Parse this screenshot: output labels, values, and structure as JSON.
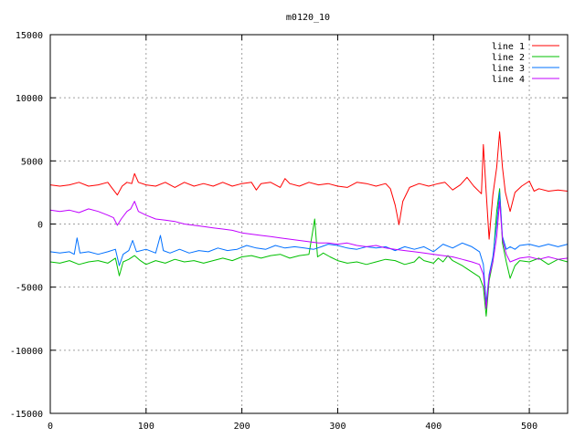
{
  "chart_data": {
    "type": "line",
    "title": "m0120_10",
    "xlabel": "",
    "ylabel": "",
    "xlim": [
      0,
      540
    ],
    "ylim": [
      -15000,
      15000
    ],
    "x_ticks": [
      0,
      100,
      200,
      300,
      400,
      500
    ],
    "y_ticks": [
      -15000,
      -10000,
      -5000,
      0,
      5000,
      10000,
      15000
    ],
    "grid": true,
    "legend_position": "top-right",
    "series": [
      {
        "name": "line 1",
        "color": "#ff0000",
        "points": [
          [
            0,
            3100
          ],
          [
            10,
            3000
          ],
          [
            20,
            3100
          ],
          [
            30,
            3300
          ],
          [
            40,
            3000
          ],
          [
            50,
            3100
          ],
          [
            60,
            3300
          ],
          [
            65,
            2800
          ],
          [
            70,
            2300
          ],
          [
            75,
            3000
          ],
          [
            80,
            3300
          ],
          [
            85,
            3200
          ],
          [
            88,
            4000
          ],
          [
            92,
            3300
          ],
          [
            100,
            3100
          ],
          [
            110,
            3000
          ],
          [
            120,
            3300
          ],
          [
            130,
            2900
          ],
          [
            140,
            3300
          ],
          [
            150,
            3000
          ],
          [
            160,
            3200
          ],
          [
            170,
            3000
          ],
          [
            180,
            3300
          ],
          [
            190,
            3000
          ],
          [
            200,
            3200
          ],
          [
            210,
            3300
          ],
          [
            215,
            2700
          ],
          [
            220,
            3200
          ],
          [
            230,
            3300
          ],
          [
            240,
            2900
          ],
          [
            245,
            3600
          ],
          [
            250,
            3200
          ],
          [
            260,
            3000
          ],
          [
            270,
            3300
          ],
          [
            280,
            3100
          ],
          [
            290,
            3200
          ],
          [
            300,
            3000
          ],
          [
            310,
            2900
          ],
          [
            320,
            3300
          ],
          [
            330,
            3200
          ],
          [
            340,
            3000
          ],
          [
            350,
            3200
          ],
          [
            355,
            2800
          ],
          [
            360,
            1500
          ],
          [
            364,
            -50
          ],
          [
            368,
            1800
          ],
          [
            375,
            2900
          ],
          [
            385,
            3200
          ],
          [
            395,
            3000
          ],
          [
            405,
            3200
          ],
          [
            412,
            3300
          ],
          [
            420,
            2700
          ],
          [
            428,
            3100
          ],
          [
            435,
            3700
          ],
          [
            442,
            3000
          ],
          [
            450,
            2400
          ],
          [
            452,
            6300
          ],
          [
            455,
            2500
          ],
          [
            458,
            -1200
          ],
          [
            462,
            2300
          ],
          [
            466,
            4500
          ],
          [
            469,
            7300
          ],
          [
            472,
            4500
          ],
          [
            475,
            2500
          ],
          [
            480,
            1000
          ],
          [
            485,
            2500
          ],
          [
            492,
            3000
          ],
          [
            500,
            3400
          ],
          [
            505,
            2600
          ],
          [
            510,
            2800
          ],
          [
            520,
            2600
          ],
          [
            530,
            2700
          ],
          [
            540,
            2600
          ]
        ]
      },
      {
        "name": "line 2",
        "color": "#00c000",
        "points": [
          [
            0,
            -3000
          ],
          [
            10,
            -3100
          ],
          [
            20,
            -2900
          ],
          [
            30,
            -3200
          ],
          [
            40,
            -3000
          ],
          [
            50,
            -2900
          ],
          [
            60,
            -3100
          ],
          [
            68,
            -2700
          ],
          [
            72,
            -4100
          ],
          [
            76,
            -3000
          ],
          [
            82,
            -2800
          ],
          [
            88,
            -2500
          ],
          [
            94,
            -2900
          ],
          [
            100,
            -3200
          ],
          [
            110,
            -2900
          ],
          [
            120,
            -3100
          ],
          [
            130,
            -2800
          ],
          [
            140,
            -3000
          ],
          [
            150,
            -2900
          ],
          [
            160,
            -3100
          ],
          [
            170,
            -2900
          ],
          [
            180,
            -2700
          ],
          [
            190,
            -2900
          ],
          [
            200,
            -2600
          ],
          [
            210,
            -2500
          ],
          [
            220,
            -2700
          ],
          [
            230,
            -2500
          ],
          [
            240,
            -2400
          ],
          [
            250,
            -2700
          ],
          [
            260,
            -2500
          ],
          [
            270,
            -2400
          ],
          [
            276,
            400
          ],
          [
            279,
            -2600
          ],
          [
            285,
            -2300
          ],
          [
            292,
            -2600
          ],
          [
            300,
            -2900
          ],
          [
            310,
            -3100
          ],
          [
            320,
            -3000
          ],
          [
            330,
            -3200
          ],
          [
            340,
            -3000
          ],
          [
            350,
            -2800
          ],
          [
            360,
            -2900
          ],
          [
            370,
            -3200
          ],
          [
            380,
            -3000
          ],
          [
            385,
            -2600
          ],
          [
            390,
            -2900
          ],
          [
            400,
            -3100
          ],
          [
            405,
            -2700
          ],
          [
            410,
            -3000
          ],
          [
            415,
            -2500
          ],
          [
            420,
            -2900
          ],
          [
            430,
            -3300
          ],
          [
            440,
            -3800
          ],
          [
            448,
            -4200
          ],
          [
            452,
            -5000
          ],
          [
            455,
            -7300
          ],
          [
            458,
            -4500
          ],
          [
            462,
            -3000
          ],
          [
            466,
            1000
          ],
          [
            469,
            2800
          ],
          [
            472,
            -1500
          ],
          [
            476,
            -3000
          ],
          [
            480,
            -4300
          ],
          [
            485,
            -3300
          ],
          [
            490,
            -2900
          ],
          [
            500,
            -3000
          ],
          [
            510,
            -2700
          ],
          [
            520,
            -3200
          ],
          [
            530,
            -2800
          ],
          [
            540,
            -3000
          ]
        ]
      },
      {
        "name": "line 3",
        "color": "#0070ff",
        "points": [
          [
            0,
            -2200
          ],
          [
            10,
            -2300
          ],
          [
            20,
            -2200
          ],
          [
            25,
            -2400
          ],
          [
            28,
            -1100
          ],
          [
            31,
            -2300
          ],
          [
            40,
            -2200
          ],
          [
            50,
            -2400
          ],
          [
            60,
            -2200
          ],
          [
            68,
            -2000
          ],
          [
            72,
            -3300
          ],
          [
            76,
            -2400
          ],
          [
            82,
            -2100
          ],
          [
            86,
            -1300
          ],
          [
            90,
            -2200
          ],
          [
            100,
            -2000
          ],
          [
            110,
            -2300
          ],
          [
            115,
            -900
          ],
          [
            118,
            -2100
          ],
          [
            125,
            -2300
          ],
          [
            135,
            -2000
          ],
          [
            145,
            -2300
          ],
          [
            155,
            -2100
          ],
          [
            165,
            -2200
          ],
          [
            175,
            -1900
          ],
          [
            185,
            -2100
          ],
          [
            195,
            -2000
          ],
          [
            205,
            -1700
          ],
          [
            215,
            -1900
          ],
          [
            225,
            -2000
          ],
          [
            235,
            -1700
          ],
          [
            245,
            -1900
          ],
          [
            255,
            -1800
          ],
          [
            265,
            -1900
          ],
          [
            275,
            -2000
          ],
          [
            283,
            -1800
          ],
          [
            290,
            -1600
          ],
          [
            300,
            -1700
          ],
          [
            310,
            -1900
          ],
          [
            320,
            -2000
          ],
          [
            330,
            -1800
          ],
          [
            340,
            -1900
          ],
          [
            350,
            -1800
          ],
          [
            360,
            -2100
          ],
          [
            370,
            -1800
          ],
          [
            380,
            -2000
          ],
          [
            390,
            -1800
          ],
          [
            400,
            -2200
          ],
          [
            410,
            -1600
          ],
          [
            420,
            -1900
          ],
          [
            430,
            -1500
          ],
          [
            440,
            -1800
          ],
          [
            448,
            -2200
          ],
          [
            452,
            -3200
          ],
          [
            455,
            -6300
          ],
          [
            458,
            -4000
          ],
          [
            462,
            -2600
          ],
          [
            466,
            0
          ],
          [
            469,
            2500
          ],
          [
            472,
            -1000
          ],
          [
            476,
            -2000
          ],
          [
            480,
            -1800
          ],
          [
            485,
            -2000
          ],
          [
            490,
            -1700
          ],
          [
            500,
            -1600
          ],
          [
            510,
            -1800
          ],
          [
            520,
            -1600
          ],
          [
            530,
            -1800
          ],
          [
            540,
            -1600
          ]
        ]
      },
      {
        "name": "line 4",
        "color": "#c000ff",
        "points": [
          [
            0,
            1100
          ],
          [
            10,
            1000
          ],
          [
            20,
            1100
          ],
          [
            30,
            900
          ],
          [
            40,
            1200
          ],
          [
            50,
            1000
          ],
          [
            60,
            700
          ],
          [
            66,
            500
          ],
          [
            70,
            -100
          ],
          [
            74,
            400
          ],
          [
            80,
            1000
          ],
          [
            84,
            1200
          ],
          [
            88,
            1800
          ],
          [
            92,
            1000
          ],
          [
            100,
            700
          ],
          [
            110,
            400
          ],
          [
            120,
            300
          ],
          [
            130,
            200
          ],
          [
            140,
            0
          ],
          [
            150,
            -100
          ],
          [
            160,
            -200
          ],
          [
            170,
            -300
          ],
          [
            180,
            -400
          ],
          [
            190,
            -500
          ],
          [
            200,
            -700
          ],
          [
            210,
            -800
          ],
          [
            220,
            -900
          ],
          [
            230,
            -1000
          ],
          [
            240,
            -1100
          ],
          [
            250,
            -1200
          ],
          [
            260,
            -1300
          ],
          [
            270,
            -1400
          ],
          [
            280,
            -1500
          ],
          [
            290,
            -1500
          ],
          [
            300,
            -1600
          ],
          [
            310,
            -1500
          ],
          [
            320,
            -1700
          ],
          [
            330,
            -1800
          ],
          [
            340,
            -1700
          ],
          [
            350,
            -1900
          ],
          [
            360,
            -2000
          ],
          [
            370,
            -2100
          ],
          [
            380,
            -2200
          ],
          [
            390,
            -2300
          ],
          [
            400,
            -2400
          ],
          [
            410,
            -2500
          ],
          [
            420,
            -2600
          ],
          [
            430,
            -2800
          ],
          [
            440,
            -3000
          ],
          [
            448,
            -3200
          ],
          [
            452,
            -4000
          ],
          [
            455,
            -6700
          ],
          [
            458,
            -4200
          ],
          [
            462,
            -3000
          ],
          [
            466,
            -1000
          ],
          [
            469,
            1800
          ],
          [
            472,
            -1200
          ],
          [
            476,
            -2400
          ],
          [
            480,
            -3000
          ],
          [
            490,
            -2700
          ],
          [
            500,
            -2600
          ],
          [
            510,
            -2800
          ],
          [
            520,
            -2600
          ],
          [
            530,
            -2800
          ],
          [
            540,
            -2700
          ]
        ]
      }
    ]
  }
}
